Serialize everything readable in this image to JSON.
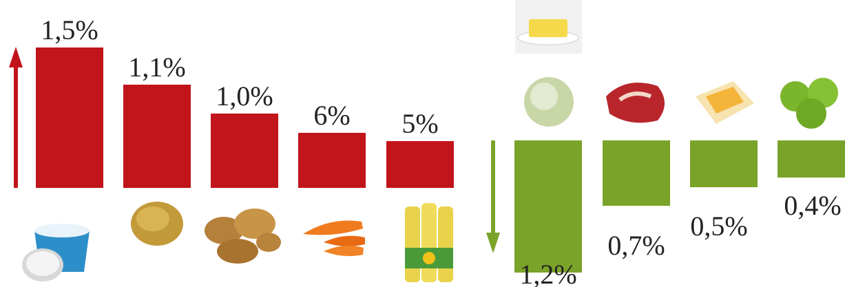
{
  "increases": {
    "labels": [
      "1,5%",
      "1,1%",
      "1,0%",
      "6%",
      "5%"
    ]
  },
  "decreases": {
    "labels": [
      "1,2%",
      "0,7%",
      "0,5%",
      "0,4%"
    ]
  }
}
